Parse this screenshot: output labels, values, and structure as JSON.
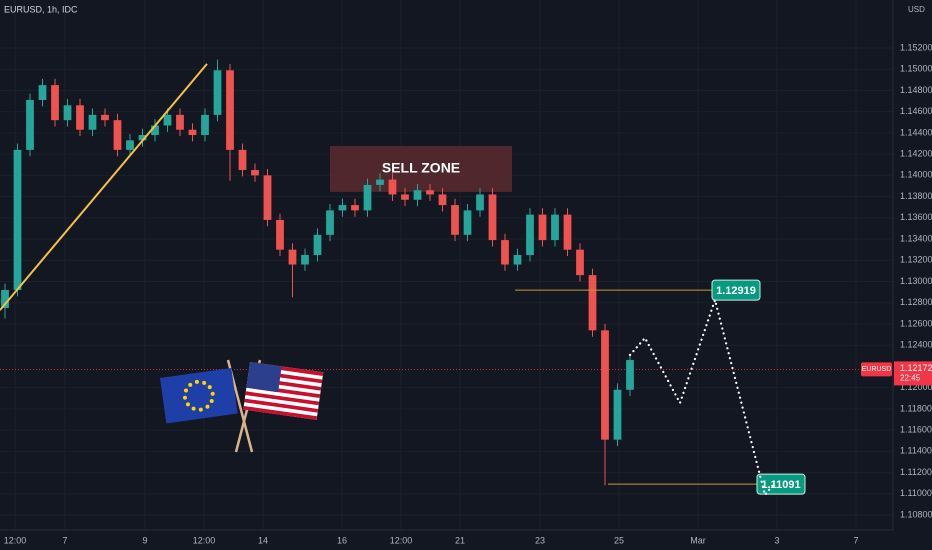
{
  "chart_data": {
    "type": "candlestick",
    "title": "EURUSD, 1h, IDC",
    "currency": "USD",
    "up_color": "#26a69a",
    "down_color": "#ef5350",
    "grid": true,
    "x": [
      0,
      1,
      2,
      3,
      4,
      5,
      6,
      7,
      8,
      9,
      10,
      11,
      12,
      13,
      14,
      15,
      16,
      17,
      18,
      19,
      20,
      21,
      22,
      23,
      24,
      25,
      26,
      27,
      28,
      29,
      30,
      31,
      32,
      33,
      34,
      35,
      36,
      37,
      38,
      39,
      40,
      41,
      42,
      43,
      44,
      45,
      46,
      47,
      48,
      49,
      50
    ],
    "open": [
      1.1275,
      1.1292,
      1.1424,
      1.1471,
      1.1485,
      1.1452,
      1.1466,
      1.1443,
      1.1457,
      1.1452,
      1.1424,
      1.1433,
      1.1438,
      1.1447,
      1.1457,
      1.1443,
      1.1438,
      1.1457,
      1.1499,
      1.1424,
      1.1405,
      1.14,
      1.1358,
      1.133,
      1.1316,
      1.1325,
      1.1344,
      1.1367,
      1.1372,
      1.1367,
      1.1391,
      1.1396,
      1.1382,
      1.1377,
      1.1386,
      1.1382,
      1.1372,
      1.1344,
      1.1367,
      1.1382,
      1.1339,
      1.1316,
      1.1325,
      1.1363,
      1.1339,
      1.1363,
      1.133,
      1.1306,
      1.1254,
      1.1151,
      1.1198
    ],
    "high": [
      1.1298,
      1.143,
      1.1477,
      1.1491,
      1.1491,
      1.1472,
      1.1472,
      1.1463,
      1.1463,
      1.1458,
      1.1439,
      1.1444,
      1.1453,
      1.1463,
      1.1463,
      1.1449,
      1.1463,
      1.1509,
      1.1505,
      1.143,
      1.1411,
      1.1406,
      1.1364,
      1.1336,
      1.1331,
      1.135,
      1.1373,
      1.1378,
      1.1378,
      1.1397,
      1.1402,
      1.1402,
      1.1388,
      1.1392,
      1.1392,
      1.1388,
      1.1378,
      1.1373,
      1.1388,
      1.1388,
      1.1345,
      1.1331,
      1.1369,
      1.1369,
      1.1369,
      1.1369,
      1.1336,
      1.1312,
      1.126,
      1.1204,
      1.1232
    ],
    "low": [
      1.1265,
      1.1286,
      1.1418,
      1.1465,
      1.1446,
      1.1446,
      1.1437,
      1.1437,
      1.1446,
      1.1418,
      1.1418,
      1.1427,
      1.1432,
      1.1441,
      1.1437,
      1.1432,
      1.1432,
      1.1451,
      1.1395,
      1.1399,
      1.1394,
      1.1352,
      1.1324,
      1.1285,
      1.131,
      1.1319,
      1.1338,
      1.1361,
      1.1361,
      1.1361,
      1.1385,
      1.1376,
      1.1371,
      1.1371,
      1.1376,
      1.1366,
      1.1338,
      1.1338,
      1.1361,
      1.1333,
      1.131,
      1.131,
      1.1319,
      1.1333,
      1.1333,
      1.1324,
      1.13,
      1.1248,
      1.1108,
      1.1145,
      1.1192
    ],
    "close": [
      1.1292,
      1.1424,
      1.1471,
      1.1485,
      1.1452,
      1.1466,
      1.1443,
      1.1457,
      1.1452,
      1.1424,
      1.1433,
      1.1438,
      1.1447,
      1.1457,
      1.1443,
      1.1438,
      1.1457,
      1.1499,
      1.1424,
      1.1405,
      1.14,
      1.1358,
      1.133,
      1.1316,
      1.1325,
      1.1344,
      1.1367,
      1.1372,
      1.1367,
      1.1391,
      1.1396,
      1.1382,
      1.1377,
      1.1386,
      1.1382,
      1.1372,
      1.1344,
      1.1367,
      1.1382,
      1.1339,
      1.1316,
      1.1325,
      1.1363,
      1.1339,
      1.1363,
      1.133,
      1.1306,
      1.1254,
      1.1151,
      1.1198,
      1.1226
    ],
    "xlim": [
      -0.4,
      71.04
    ],
    "xticks": [
      {
        "value": 0.8,
        "label": "12:00"
      },
      {
        "value": 4.8,
        "label": "7"
      },
      {
        "value": 11.2,
        "label": "9"
      },
      {
        "value": 15.92,
        "label": "12:00"
      },
      {
        "value": 20.64,
        "label": "14"
      },
      {
        "value": 26.96,
        "label": "16"
      },
      {
        "value": 31.68,
        "label": "12:00"
      },
      {
        "value": 36.4,
        "label": "21"
      },
      {
        "value": 42.8,
        "label": "23"
      },
      {
        "value": 49.12,
        "label": "25"
      },
      {
        "value": 55.44,
        "label": "Mar"
      },
      {
        "value": 61.76,
        "label": "3"
      },
      {
        "value": 68.08,
        "label": "7"
      }
    ],
    "ylim": [
      1.10659,
      1.15652
    ],
    "yticks": [
      {
        "value": 1.108,
        "label": "1.10800"
      },
      {
        "value": 1.11,
        "label": "1.11000"
      },
      {
        "value": 1.112,
        "label": "1.11200"
      },
      {
        "value": 1.114,
        "label": "1.11400"
      },
      {
        "value": 1.116,
        "label": "1.11600"
      },
      {
        "value": 1.118,
        "label": "1.11800"
      },
      {
        "value": 1.12,
        "label": "1.12000"
      },
      {
        "value": 1.124,
        "label": "1.12400"
      },
      {
        "value": 1.126,
        "label": "1.12600"
      },
      {
        "value": 1.128,
        "label": "1.12800"
      },
      {
        "value": 1.13,
        "label": "1.13000"
      },
      {
        "value": 1.132,
        "label": "1.13200"
      },
      {
        "value": 1.134,
        "label": "1.13400"
      },
      {
        "value": 1.136,
        "label": "1.13600"
      },
      {
        "value": 1.138,
        "label": "1.13800"
      },
      {
        "value": 1.14,
        "label": "1.14000"
      },
      {
        "value": 1.142,
        "label": "1.14200"
      },
      {
        "value": 1.144,
        "label": "1.14400"
      },
      {
        "value": 1.146,
        "label": "1.14600"
      },
      {
        "value": 1.148,
        "label": "1.14800"
      },
      {
        "value": 1.15,
        "label": "1.15000"
      },
      {
        "value": 1.152,
        "label": "1.15200"
      }
    ],
    "trendline": {
      "x": [
        -0.4,
        16.16
      ],
      "y": [
        1.1273,
        1.1505
      ],
      "color": "#f5c242"
    },
    "sell_zone": {
      "label": "SELL ZONE",
      "x": [
        26,
        40.56
      ],
      "y": [
        1.13844,
        1.14277
      ],
      "color": "#5a2a2e"
    },
    "levels": [
      {
        "value": 1.12919,
        "x": [
          40.8,
          60.4
        ],
        "color": "#c8963e"
      },
      {
        "value": 1.11091,
        "x": [
          48.24,
          64
        ],
        "color": "#c8963e"
      }
    ],
    "projection": {
      "x": [
        50,
        51.2,
        54,
        56.8,
        60.8,
        61.44
      ],
      "y": [
        1.12308,
        1.12468,
        1.11856,
        1.12826,
        1.10989,
        1.11083
      ]
    },
    "last_price": {
      "symbol": "EURUSD",
      "value": 1.12172,
      "countdown": "22:45",
      "color": "#f23645"
    }
  }
}
